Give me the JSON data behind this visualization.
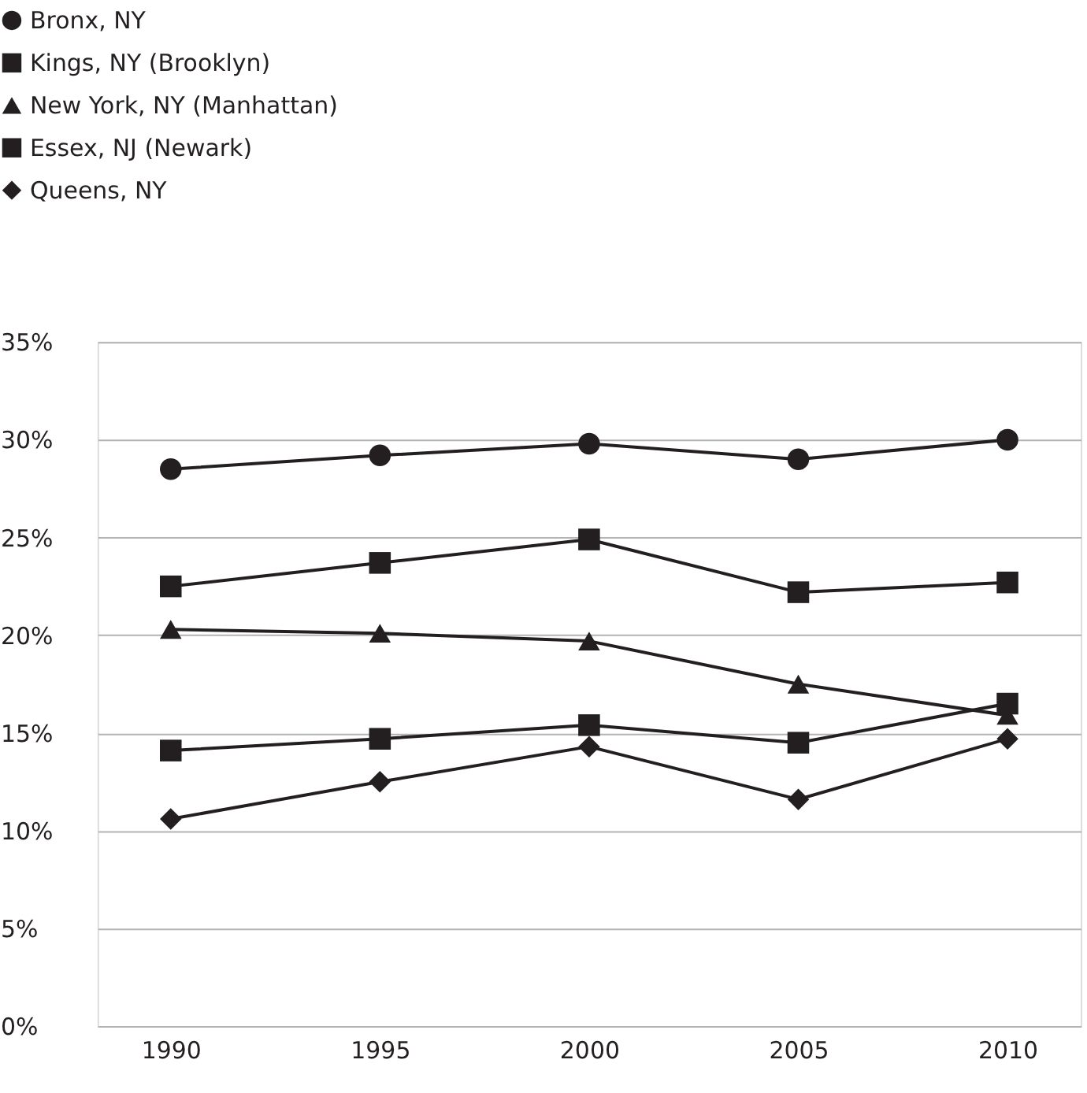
{
  "chart_data": {
    "type": "line",
    "categories": [
      "1990",
      "1995",
      "2000",
      "2005",
      "2010"
    ],
    "series": [
      {
        "name": "Bronx, NY",
        "color": "#231f20",
        "marker": "circle",
        "values": [
          28.5,
          29.2,
          29.8,
          29.0,
          30.0
        ]
      },
      {
        "name": "Kings, NY (Brooklyn)",
        "color": "#231f20",
        "marker": "square",
        "values": [
          22.5,
          23.7,
          24.9,
          22.2,
          22.7
        ]
      },
      {
        "name": "New York, NY (Manhattan)",
        "color": "#231f20",
        "marker": "triangle",
        "values": [
          20.3,
          20.1,
          19.7,
          17.5,
          15.9
        ]
      },
      {
        "name": "Essex, NJ (Newark)",
        "color": "#231f20",
        "marker": "square",
        "values": [
          14.1,
          14.7,
          15.4,
          14.5,
          16.5
        ]
      },
      {
        "name": "Queens, NY",
        "color": "#231f20",
        "marker": "diamond",
        "values": [
          10.6,
          12.5,
          14.3,
          11.6,
          14.7
        ]
      }
    ],
    "ylim": [
      0,
      35
    ],
    "yticks": [
      {
        "value": 0,
        "label": "0%"
      },
      {
        "value": 5,
        "label": "5%"
      },
      {
        "value": 10,
        "label": "10%"
      },
      {
        "value": 15,
        "label": "15%"
      },
      {
        "value": 20,
        "label": "20%"
      },
      {
        "value": 25,
        "label": "25%"
      },
      {
        "value": 30,
        "label": "30%"
      },
      {
        "value": 35,
        "label": "35%"
      }
    ],
    "grid": "y",
    "legend": "top left",
    "line_style": "solid"
  }
}
